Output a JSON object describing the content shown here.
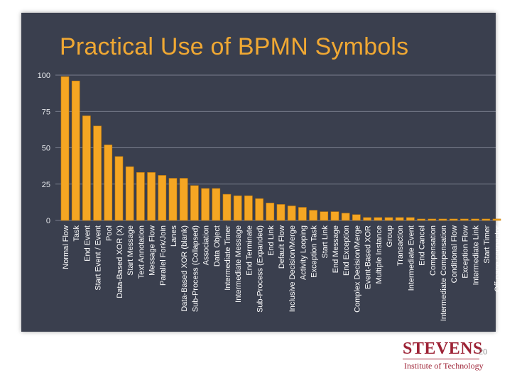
{
  "slide": {
    "title": "Practical Use of BPMN Symbols",
    "page_number": "20",
    "logo_text": "STEVENS",
    "logo_subtext": "Institute of Technology"
  },
  "colors": {
    "panel_bg": "#3a3f4e",
    "bar_fill": "#f5a623",
    "bar_stroke": "#c47c0a",
    "title": "#f0a833",
    "gridline": "#8f95a3",
    "logo": "#9d2235"
  },
  "chart_data": {
    "type": "bar",
    "title": "Practical Use of BPMN Symbols",
    "xlabel": "",
    "ylabel": "",
    "ylim": [
      0,
      100
    ],
    "yticks": [
      0,
      25,
      50,
      75,
      100
    ],
    "grid": true,
    "categories": [
      "Normal Flow",
      "Task",
      "End Event",
      "Start Event / Event",
      "Pool",
      "Data-Based XOR (X)",
      "Start Message",
      "Text Annotation",
      "Message Flow",
      "Parallel Fork/Join",
      "Lanes",
      "Data-Based XOR (blank)",
      "Sub-Process (Collapsed)",
      "Association",
      "Data Object",
      "Intermediate Timer",
      "Intermediate Message",
      "End Terminate",
      "Sub-Process (Expanded)",
      "End Link",
      "Default Flow",
      "Inclusive Decision/Merge",
      "Activity Looping",
      "Exception Task",
      "Start Link",
      "End Message",
      "End Exception",
      "Complex Decision/Merge",
      "Event-Based XOR",
      "Multiple Instance",
      "Group",
      "Transaction",
      "Intermediate Event",
      "End Cancel",
      "Compensation",
      "Intermediate Compensation",
      "Conditional Flow",
      "Exception Flow",
      "Intermediate Link",
      "Start Timer",
      "Off-page connector"
    ],
    "values": [
      99,
      96,
      72,
      65,
      52,
      44,
      37,
      33,
      33,
      31,
      29,
      29,
      24,
      22,
      22,
      18,
      17,
      17,
      15,
      12,
      11,
      10,
      9,
      7,
      6,
      6,
      5,
      4,
      2,
      2,
      2,
      2,
      2,
      1,
      1,
      1,
      1,
      1,
      1,
      1,
      1
    ]
  }
}
